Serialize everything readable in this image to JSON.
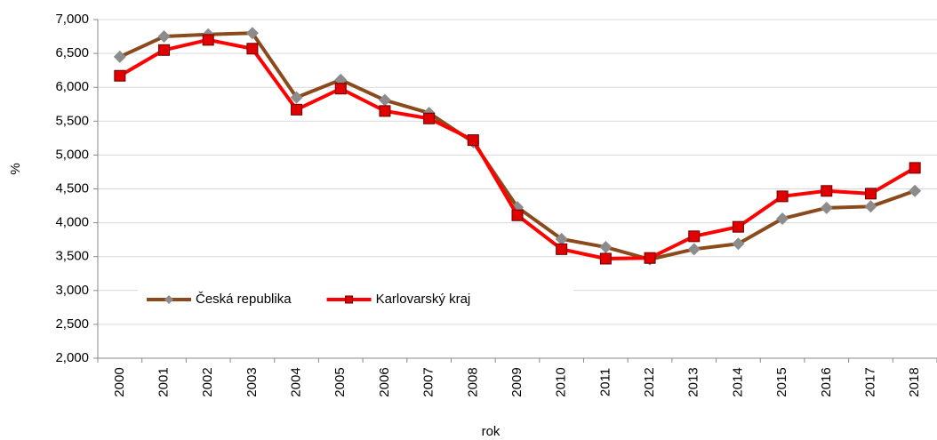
{
  "chart_data": {
    "type": "line",
    "x_label": "rok",
    "y_label": "%",
    "categories": [
      "2000",
      "2001",
      "2002",
      "2003",
      "2004",
      "2005",
      "2006",
      "2007",
      "2008",
      "2009",
      "2010",
      "2011",
      "2012",
      "2013",
      "2014",
      "2015",
      "2016",
      "2017",
      "2018"
    ],
    "series": [
      {
        "name": "Česká republika",
        "color": "#8b4a1c",
        "marker": "diamond",
        "marker_color": "#8c8c8c",
        "values": [
          6.45,
          6.75,
          6.78,
          6.8,
          5.85,
          6.11,
          5.81,
          5.62,
          5.19,
          4.23,
          3.76,
          3.64,
          3.46,
          3.61,
          3.69,
          4.06,
          4.22,
          4.24,
          4.47
        ]
      },
      {
        "name": "Karlovarský kraj",
        "color": "#ff0000",
        "marker": "square",
        "marker_color": "#e00000",
        "values": [
          6.17,
          6.55,
          6.7,
          6.57,
          5.67,
          5.98,
          5.65,
          5.54,
          5.22,
          4.11,
          3.61,
          3.47,
          3.48,
          3.8,
          3.94,
          4.39,
          4.47,
          4.43,
          4.81
        ]
      }
    ],
    "ylim": [
      2,
      7
    ],
    "yticks": [
      {
        "value": 2,
        "label": "2,000"
      },
      {
        "value": 2.5,
        "label": "2,500"
      },
      {
        "value": 3,
        "label": "3,000"
      },
      {
        "value": 3.5,
        "label": "3,500"
      },
      {
        "value": 4,
        "label": "4,000"
      },
      {
        "value": 4.5,
        "label": "4,500"
      },
      {
        "value": 5,
        "label": "5,000"
      },
      {
        "value": 5.5,
        "label": "5,500"
      },
      {
        "value": 6,
        "label": "6,000"
      },
      {
        "value": 6.5,
        "label": "6,500"
      },
      {
        "value": 7,
        "label": "7,000"
      }
    ],
    "grid": true,
    "legend": "lower left"
  }
}
